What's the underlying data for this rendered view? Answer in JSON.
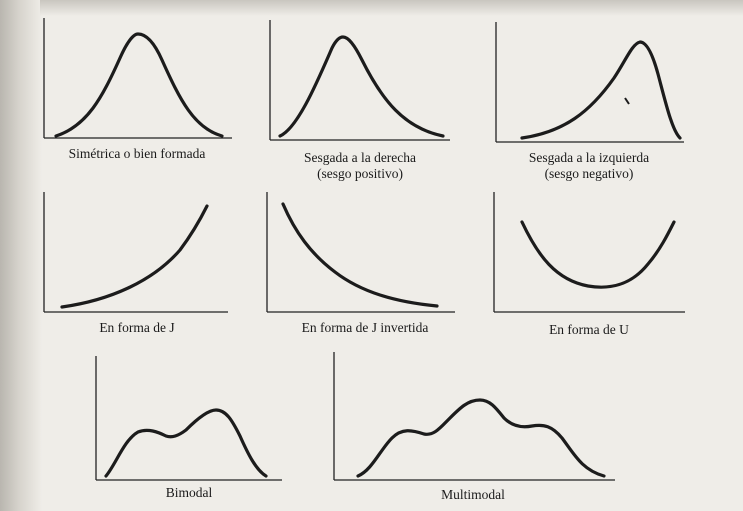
{
  "figure": {
    "panels": [
      {
        "id": "symmetric",
        "caption_lines": [
          "Simétrica o bien formada"
        ]
      },
      {
        "id": "right-skewed",
        "caption_lines": [
          "Sesgada a la derecha",
          "(sesgo positivo)"
        ]
      },
      {
        "id": "left-skewed",
        "caption_lines": [
          "Sesgada a la izquierda",
          "(sesgo negativo)"
        ]
      },
      {
        "id": "j-shaped",
        "caption_lines": [
          "En forma de J"
        ]
      },
      {
        "id": "inverted-j",
        "caption_lines": [
          "En forma de J invertida"
        ]
      },
      {
        "id": "u-shaped",
        "caption_lines": [
          "En forma de U"
        ]
      },
      {
        "id": "bimodal",
        "caption_lines": [
          "Bimodal"
        ]
      },
      {
        "id": "multimodal",
        "caption_lines": [
          "Multimodal"
        ]
      }
    ]
  },
  "colors": {
    "paper": "#efede8",
    "ink": "#1c1c1c"
  }
}
